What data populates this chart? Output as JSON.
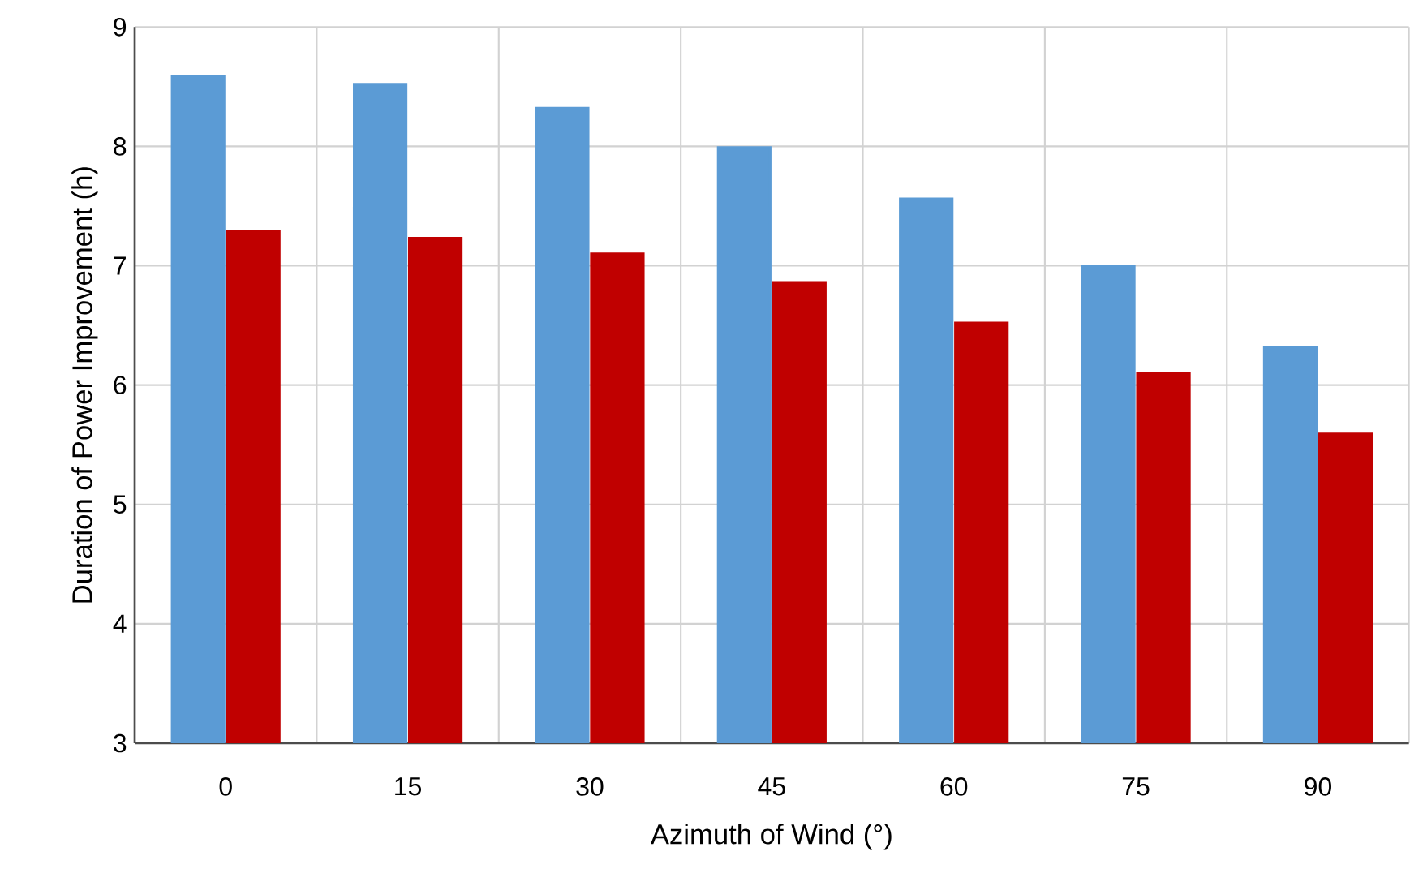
{
  "chart_data": {
    "type": "bar",
    "xlabel": "Azimuth of Wind (°)",
    "ylabel": "Duration of Power Improvement (h)",
    "categories": [
      "0",
      "15",
      "30",
      "45",
      "60",
      "75",
      "90"
    ],
    "series": [
      {
        "color": "#5b9bd5",
        "values": [
          8.59,
          8.52,
          8.32,
          7.99,
          7.56,
          7.0,
          6.32
        ]
      },
      {
        "color": "#c00000",
        "values": [
          7.29,
          7.23,
          7.1,
          6.86,
          6.52,
          6.1,
          5.59
        ]
      }
    ],
    "ylim": [
      3,
      9
    ],
    "yticks": [
      3,
      4,
      5,
      6,
      7,
      8,
      9
    ],
    "grid": true
  }
}
